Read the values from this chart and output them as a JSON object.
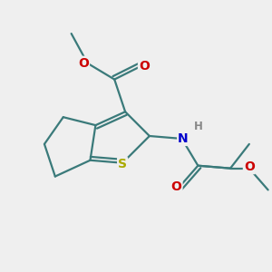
{
  "background_color": "#efefef",
  "bond_color": "#3a7a7a",
  "S_color": "#aaaa00",
  "N_color": "#0000cc",
  "O_color": "#cc0000",
  "H_color": "#888888",
  "line_width": 1.6,
  "fig_size": [
    3.0,
    3.0
  ],
  "dpi": 100,
  "xlim": [
    0,
    10
  ],
  "ylim": [
    0,
    10
  ],
  "font_size": 10
}
